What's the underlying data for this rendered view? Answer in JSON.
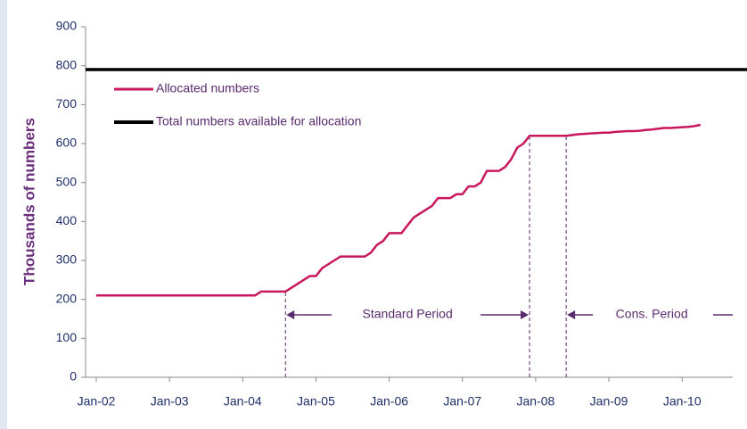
{
  "chart_data": {
    "type": "line",
    "y_axis_label": "Thousands of numbers",
    "xlim": [
      "2002-01",
      "2010-09"
    ],
    "xticks": [
      {
        "value": "2002-01",
        "label": "Jan-02"
      },
      {
        "value": "2003-01",
        "label": "Jan-03"
      },
      {
        "value": "2004-01",
        "label": "Jan-04"
      },
      {
        "value": "2005-01",
        "label": "Jan-05"
      },
      {
        "value": "2006-01",
        "label": "Jan-06"
      },
      {
        "value": "2007-01",
        "label": "Jan-07"
      },
      {
        "value": "2008-01",
        "label": "Jan-08"
      },
      {
        "value": "2009-01",
        "label": "Jan-09"
      },
      {
        "value": "2010-01",
        "label": "Jan-10"
      }
    ],
    "ylim": [
      0,
      900
    ],
    "yticks": [
      0,
      100,
      200,
      300,
      400,
      500,
      600,
      700,
      800,
      900
    ],
    "legend": "upper left",
    "series": [
      {
        "name": "Allocated numbers",
        "color": "#c8175d",
        "x": [
          "2002-01",
          "2002-02",
          "2002-03",
          "2002-04",
          "2002-05",
          "2002-06",
          "2002-07",
          "2002-08",
          "2002-09",
          "2002-10",
          "2002-11",
          "2002-12",
          "2003-01",
          "2003-02",
          "2003-03",
          "2003-04",
          "2003-05",
          "2003-06",
          "2003-07",
          "2003-08",
          "2003-09",
          "2003-10",
          "2003-11",
          "2003-12",
          "2004-01",
          "2004-02",
          "2004-03",
          "2004-04",
          "2004-05",
          "2004-06",
          "2004-07",
          "2004-08",
          "2004-09",
          "2004-10",
          "2004-11",
          "2004-12",
          "2005-01",
          "2005-02",
          "2005-03",
          "2005-04",
          "2005-05",
          "2005-06",
          "2005-07",
          "2005-08",
          "2005-09",
          "2005-10",
          "2005-11",
          "2005-12",
          "2006-01",
          "2006-02",
          "2006-03",
          "2006-04",
          "2006-05",
          "2006-06",
          "2006-07",
          "2006-08",
          "2006-09",
          "2006-10",
          "2006-11",
          "2006-12",
          "2007-01",
          "2007-02",
          "2007-03",
          "2007-04",
          "2007-05",
          "2007-06",
          "2007-07",
          "2007-08",
          "2007-09",
          "2007-10",
          "2007-11",
          "2007-12",
          "2008-01",
          "2008-02",
          "2008-03",
          "2008-04",
          "2008-05",
          "2008-06",
          "2008-07",
          "2008-08",
          "2008-09",
          "2008-10",
          "2008-11",
          "2008-12",
          "2009-01",
          "2009-02",
          "2009-03",
          "2009-04",
          "2009-05",
          "2009-06",
          "2009-07",
          "2009-08",
          "2009-09",
          "2009-10",
          "2009-11",
          "2009-12",
          "2010-01",
          "2010-02",
          "2010-03",
          "2010-04"
        ],
        "values": [
          210,
          210,
          210,
          210,
          210,
          210,
          210,
          210,
          210,
          210,
          210,
          210,
          210,
          210,
          210,
          210,
          210,
          210,
          210,
          210,
          210,
          210,
          210,
          210,
          210,
          210,
          210,
          220,
          220,
          220,
          220,
          220,
          230,
          240,
          250,
          260,
          260,
          280,
          290,
          300,
          310,
          310,
          310,
          310,
          310,
          320,
          340,
          350,
          370,
          370,
          370,
          390,
          410,
          420,
          430,
          440,
          460,
          460,
          460,
          470,
          470,
          490,
          490,
          500,
          530,
          530,
          530,
          540,
          560,
          590,
          600,
          620,
          620,
          620,
          620,
          620,
          620,
          620,
          622,
          624,
          625,
          626,
          627,
          628,
          628,
          630,
          631,
          632,
          632,
          633,
          635,
          636,
          638,
          640,
          640,
          641,
          642,
          643,
          645,
          648
        ]
      }
    ],
    "reference_lines": [
      {
        "name": "Total numbers available for allocation",
        "value": 790,
        "color": "#000000"
      }
    ],
    "annotations": [
      {
        "text": "Standard Period",
        "start": "2004-08",
        "end": "2007-12"
      },
      {
        "text": "Cons. Period",
        "start": "2008-06"
      }
    ]
  }
}
